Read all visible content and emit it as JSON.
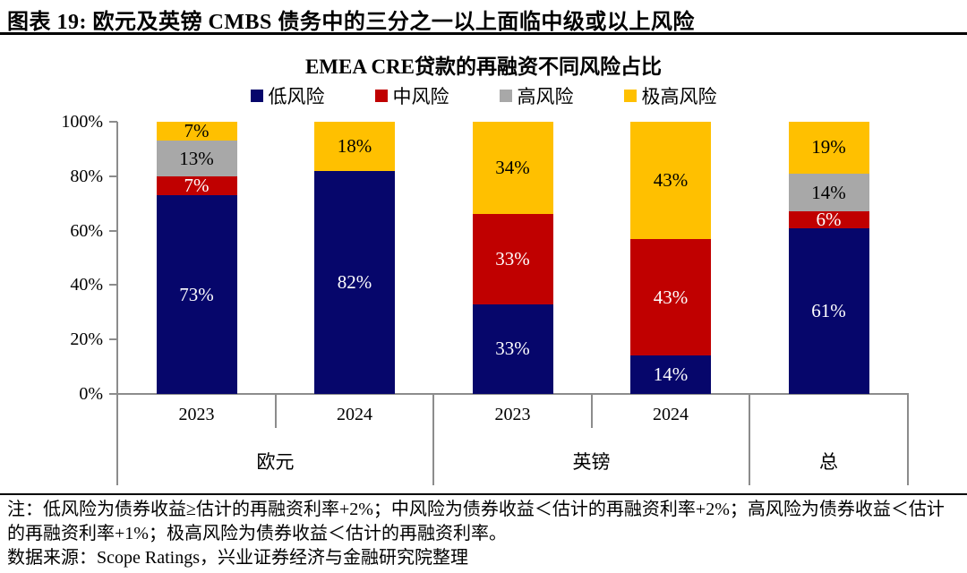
{
  "page": {
    "header_title": "图表 19: 欧元及英镑 CMBS 债务中的三分之一以上面临中级或以上风险"
  },
  "chart_data": {
    "type": "bar",
    "stacked": true,
    "title": "EMEA CRE贷款的再融资不同风险占比",
    "unit": "%",
    "categories": [
      "2023",
      "2024",
      "2023",
      "2024",
      ""
    ],
    "groups": [
      {
        "label": "欧元",
        "cols": 2
      },
      {
        "label": "英镑",
        "cols": 2
      },
      {
        "label": "总",
        "cols": 1
      }
    ],
    "series": [
      {
        "name": "低风险",
        "color": "#06066B",
        "text_color": "#FFFFFF",
        "values": [
          73,
          82,
          33,
          14,
          61
        ]
      },
      {
        "name": "中风险",
        "color": "#C00000",
        "text_color": "#FFFFFF",
        "values": [
          7,
          0,
          33,
          43,
          6
        ]
      },
      {
        "name": "高风险",
        "color": "#A8A8A8",
        "text_color": "#000000",
        "values": [
          13,
          0,
          0,
          0,
          14
        ]
      },
      {
        "name": "极高风险",
        "color": "#FFC000",
        "text_color": "#000000",
        "values": [
          7,
          18,
          34,
          43,
          19
        ]
      }
    ],
    "y_axis": {
      "ticks": [
        "0%",
        "20%",
        "40%",
        "60%",
        "80%",
        "100%"
      ],
      "min": 0,
      "max": 100
    },
    "legend_position": "top",
    "grid": false,
    "axis_color": "#8C8C8C"
  },
  "footer": {
    "note": "注：低风险为债券收益≥估计的再融资利率+2%；中风险为债券收益＜估计的再融资利率+2%；高风险为债券收益＜估计的再融资利率+1%；极高风险为债券收益＜估计的再融资利率。",
    "source": "数据来源：Scope Ratings，兴业证券经济与金融研究院整理"
  }
}
